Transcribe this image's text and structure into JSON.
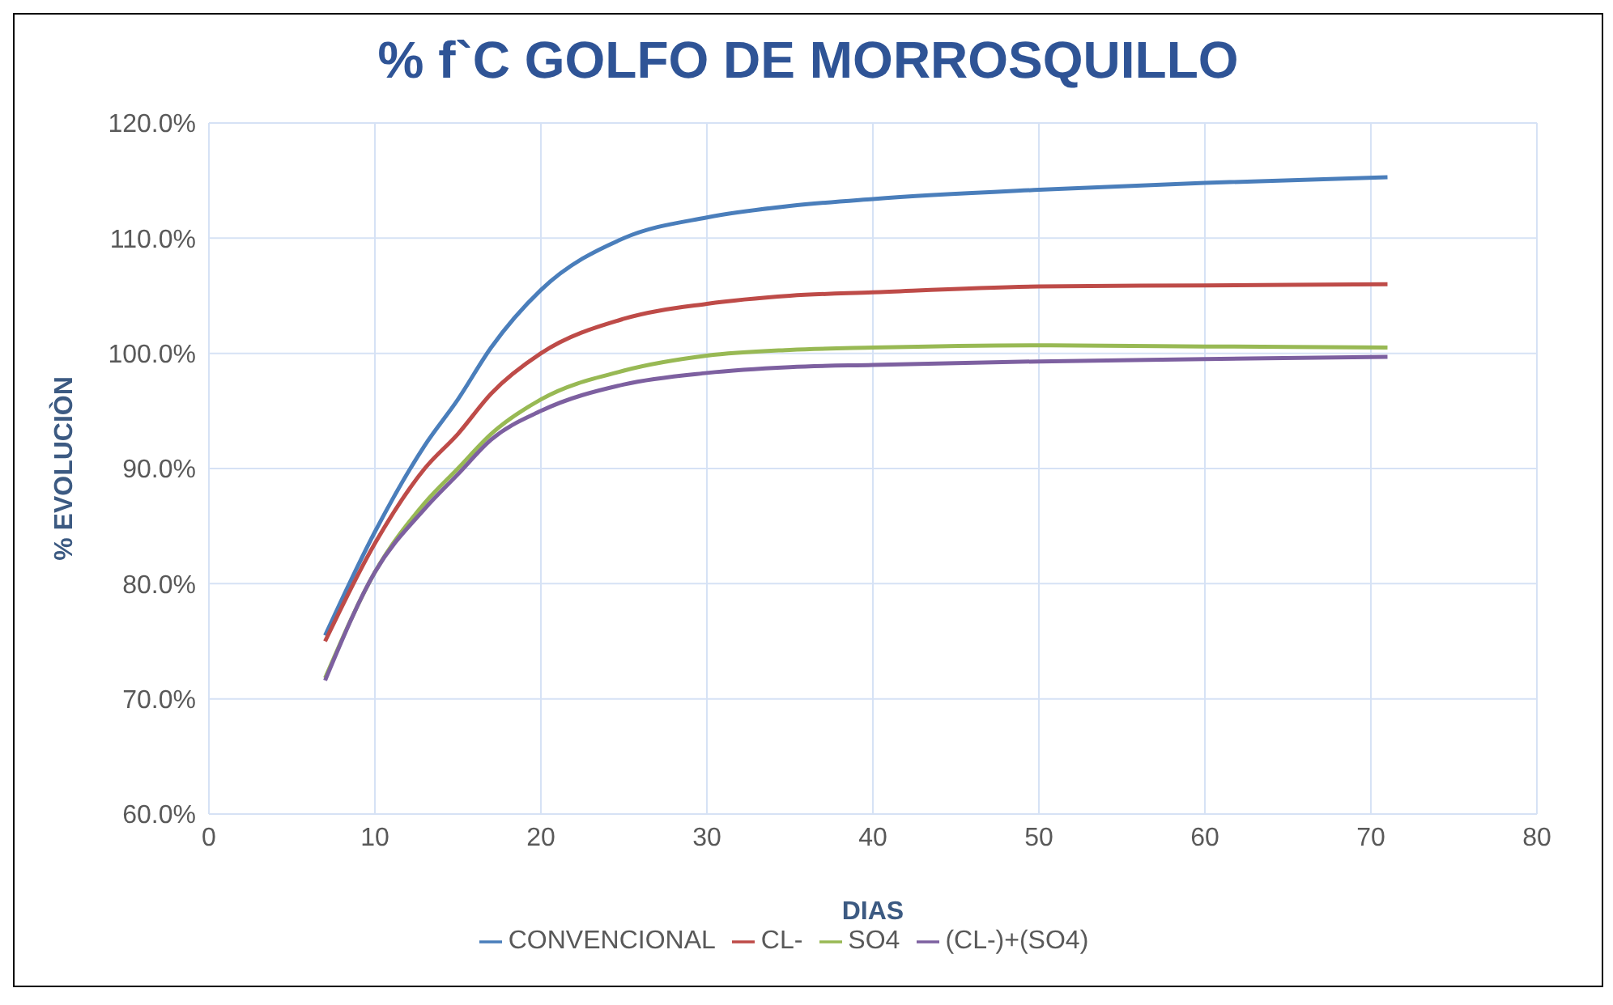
{
  "chart_data": {
    "type": "line",
    "title": "% f`C GOLFO DE MORROSQUILLO",
    "xlabel": "DIAS",
    "ylabel": "% EVOLUCIÒN",
    "x": [
      7,
      10,
      13,
      15,
      17,
      20,
      25,
      30,
      35,
      40,
      50,
      60,
      71
    ],
    "series": [
      {
        "name": "CONVENCIONAL",
        "color": "#4a7ebb",
        "values": [
          75.5,
          84.5,
          92,
          96,
          100.5,
          105.5,
          110,
          111.8,
          112.8,
          113.4,
          114.2,
          114.8,
          115.3
        ]
      },
      {
        "name": "CL-",
        "color": "#be4b48",
        "values": [
          75,
          83.5,
          90,
          93,
          96.5,
          100,
          103,
          104.3,
          105,
          105.3,
          105.8,
          105.9,
          106
        ]
      },
      {
        "name": "SO4",
        "color": "#98b954",
        "values": [
          71.8,
          81,
          87,
          90,
          93,
          96,
          98.5,
          99.8,
          100.3,
          100.5,
          100.7,
          100.6,
          100.5
        ]
      },
      {
        "name": "(CL-)+(SO4)",
        "color": "#7d60a0",
        "values": [
          71.6,
          81,
          86.5,
          89.5,
          92.5,
          95,
          97.3,
          98.3,
          98.8,
          99,
          99.3,
          99.5,
          99.7
        ]
      }
    ],
    "xlim": [
      0,
      80
    ],
    "xticks": [
      0,
      10,
      20,
      30,
      40,
      50,
      60,
      70,
      80
    ],
    "ylim": [
      60,
      120
    ],
    "yticks": [
      {
        "value": 60,
        "label": "60.0%"
      },
      {
        "value": 70,
        "label": "70.0%"
      },
      {
        "value": 80,
        "label": "80.0%"
      },
      {
        "value": 90,
        "label": "90.0%"
      },
      {
        "value": 100,
        "label": "100.0%"
      },
      {
        "value": 110,
        "label": "110.0%"
      },
      {
        "value": 120,
        "label": "120.0%"
      }
    ],
    "grid": true,
    "legend": "bottom",
    "marker": "none",
    "line_style": "solid"
  }
}
